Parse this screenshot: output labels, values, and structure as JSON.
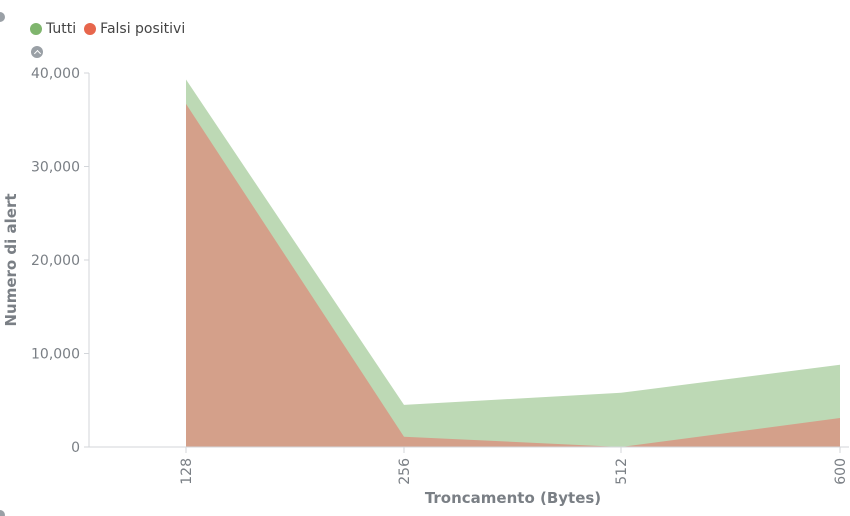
{
  "legend": {
    "items": [
      {
        "label": "Tutti",
        "color": "#7fb56d"
      },
      {
        "label": "Falsi positivi",
        "color": "#e7664c"
      }
    ]
  },
  "icons": {
    "collapse": "chevron-up-icon"
  },
  "chart_data": {
    "type": "area",
    "categories": [
      "128",
      "256",
      "512",
      "600"
    ],
    "series": [
      {
        "name": "Tutti",
        "values": [
          39300,
          4500,
          5800,
          8800
        ],
        "color": "#bdd9b5"
      },
      {
        "name": "Falsi positivi",
        "values": [
          36700,
          1100,
          0,
          3100
        ],
        "color": "#d4a08a"
      }
    ],
    "xlabel": "Troncamento (Bytes)",
    "ylabel": "Numero di alert",
    "ylim": [
      0,
      40000
    ],
    "yticks": [
      "0",
      "10,000",
      "20,000",
      "30,000",
      "40,000"
    ],
    "yticks_values": [
      0,
      10000,
      20000,
      30000,
      40000
    ],
    "grid": false,
    "legend_position": "top-left"
  }
}
